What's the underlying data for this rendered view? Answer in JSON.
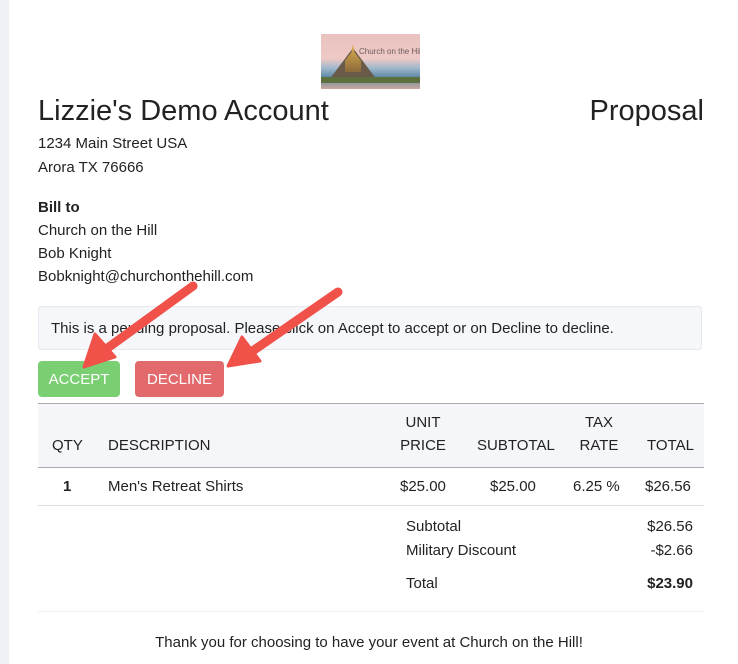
{
  "logo": {
    "text": "Church on the Hill"
  },
  "header": {
    "company": "Lizzie's Demo Account",
    "doc_type": "Proposal",
    "address1": "1234 Main Street USA",
    "address2": "Arora TX 76666"
  },
  "bill_to": {
    "label": "Bill to",
    "name": "Church on the Hill",
    "contact": "Bob Knight",
    "email": "Bobknight@churchonthehill.com"
  },
  "notice": "This is a pending proposal. Please click on Accept to accept or on Decline to decline.",
  "actions": {
    "accept": "ACCEPT",
    "decline": "DECLINE",
    "accept_color": "#7acf72",
    "decline_color": "#e26a6c"
  },
  "table": {
    "headers": {
      "qty": "QTY",
      "description": "DESCRIPTION",
      "unit_price_1": "UNIT",
      "unit_price_2": "PRICE",
      "subtotal": "SUBTOTAL",
      "tax_rate_1": "TAX",
      "tax_rate_2": "RATE",
      "total": "TOTAL"
    },
    "rows": [
      {
        "qty": "1",
        "description": "Men's Retreat Shirts",
        "unit_price": "$25.00",
        "subtotal": "$25.00",
        "tax_rate": "6.25 %",
        "total": "$26.56"
      }
    ]
  },
  "summary": {
    "subtotal_label": "Subtotal",
    "subtotal": "$26.56",
    "discount_label": "Military Discount",
    "discount": "-$2.66",
    "total_label": "Total",
    "total": "$23.90"
  },
  "footer": "Thank you for choosing to have your event at Church on the Hill!",
  "annotation": {
    "arrow_color": "#f0524a"
  }
}
